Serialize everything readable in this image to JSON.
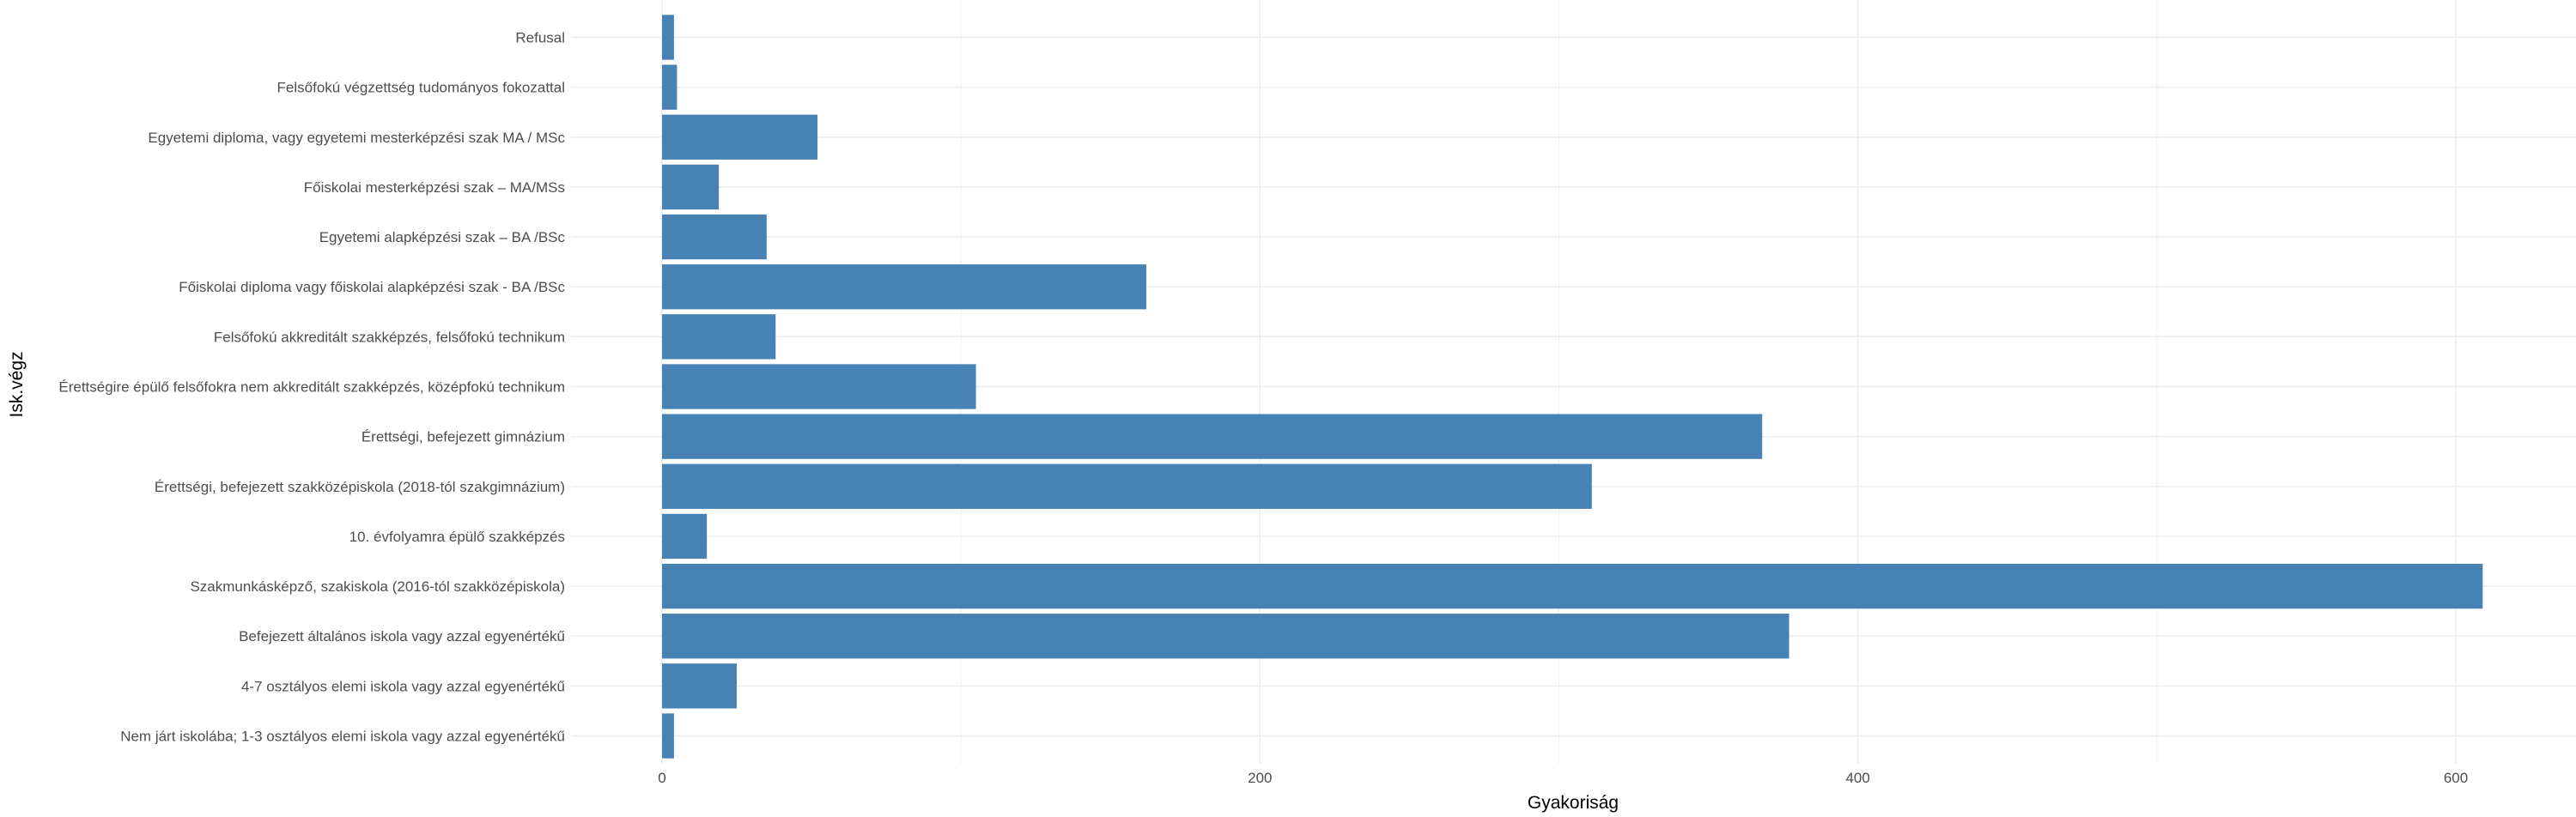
{
  "chart_data": {
    "type": "bar",
    "orientation": "horizontal",
    "xlabel": "Gyakoriság",
    "ylabel": "Isk.végz",
    "xlim": [
      0,
      640
    ],
    "xticks": [
      0,
      200,
      400,
      600
    ],
    "grid": true,
    "bar_color": "#4682B4",
    "categories": [
      "Nem járt iskolába; 1-3 osztályos elemi iskola vagy azzal egyenértékű",
      "4-7 osztályos elemi iskola vagy azzal egyenértékű",
      "Befejezett általános iskola vagy azzal egyenértékű",
      "Szakmunkásképző, szakiskola (2016-tól szakközépiskola)",
      "10. évfolyamra épülő szakképzés",
      "Érettségi, befejezett szakközépiskola (2018-tól szakgimnázium)",
      "Érettségi, befejezett gimnázium",
      "Érettségire épülő felsőfokra nem akkreditált szakképzés, középfokú technikum",
      "Felsőfokú akkreditált szakképzés, felsőfokú technikum",
      "Főiskolai diploma vagy főiskolai alapképzési szak - BA /BSc",
      "Egyetemi alapképzési szak – BA /BSc",
      "Főiskolai mesterképzési szak – MA/MSs",
      "Egyetemi diploma, vagy egyetemi mesterképzési szak MA / MSc",
      "Felsőfokú végzettség tudományos fokozattal",
      "Refusal"
    ],
    "values": [
      4,
      25,
      377,
      609,
      15,
      311,
      368,
      105,
      38,
      162,
      35,
      19,
      52,
      5,
      4
    ]
  }
}
